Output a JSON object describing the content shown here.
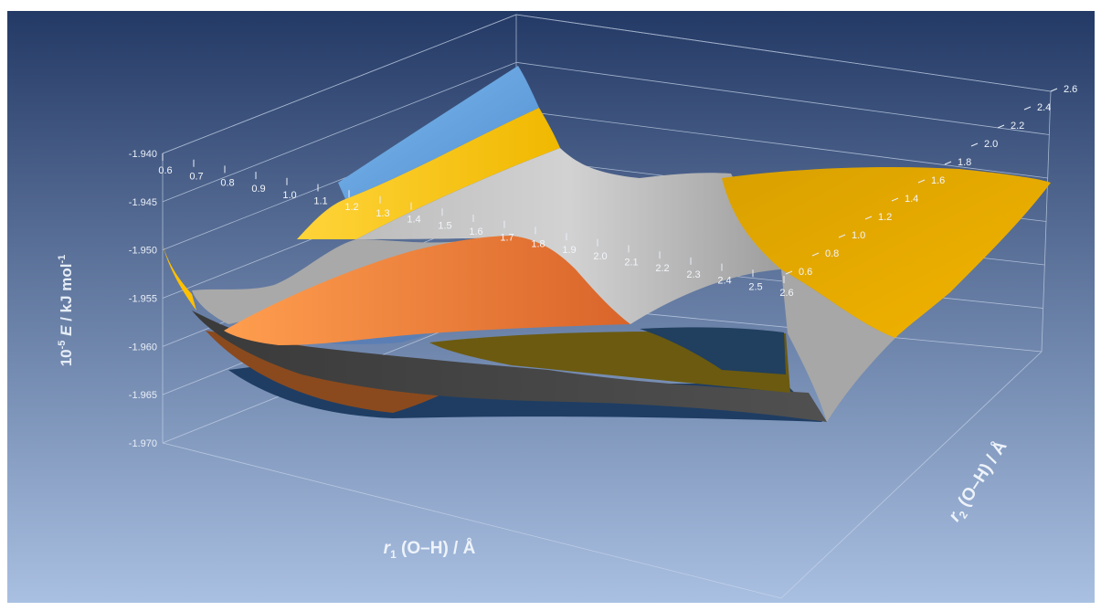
{
  "chart_data": {
    "type": "surface",
    "title": "",
    "zlabel": {
      "prefix": "10",
      "prefix_sup": "-5",
      "italic": "E",
      "rest": " / kJ mol",
      "rest_sup": "-1"
    },
    "xlabel": {
      "var": "r",
      "sub": "1",
      "rest": " (O–H) / Å"
    },
    "ylabel": {
      "var": "r",
      "sub": "2",
      "rest": " (O–H) / Å"
    },
    "zlim": [
      -1.97,
      -1.94
    ],
    "z_ticks": [
      "-1.940",
      "-1.945",
      "-1.950",
      "-1.955",
      "-1.960",
      "-1.965",
      "-1.970"
    ],
    "x_ticks": [
      "0.6",
      "0.7",
      "0.8",
      "0.9",
      "1.0",
      "1.1",
      "1.2",
      "1.3",
      "1.4",
      "1.5",
      "1.6",
      "1.7",
      "1.8",
      "1.9",
      "2.0",
      "2.1",
      "2.2",
      "2.3",
      "2.4",
      "2.5",
      "2.6"
    ],
    "y_ticks": [
      "0.6",
      "0.8",
      "1.0",
      "1.2",
      "1.4",
      "1.6",
      "1.8",
      "2.0",
      "2.2",
      "2.4",
      "2.6"
    ],
    "band_colors": [
      "#1f3d63",
      "#8a4a1e",
      "#4a4a4a",
      "#6b5a10",
      "#5b9bd5",
      "#ed7d31",
      "#a5a5a5",
      "#ffc000"
    ],
    "grid": true,
    "background": {
      "top": "#243a66",
      "bottom": "#a9c0e2"
    }
  }
}
